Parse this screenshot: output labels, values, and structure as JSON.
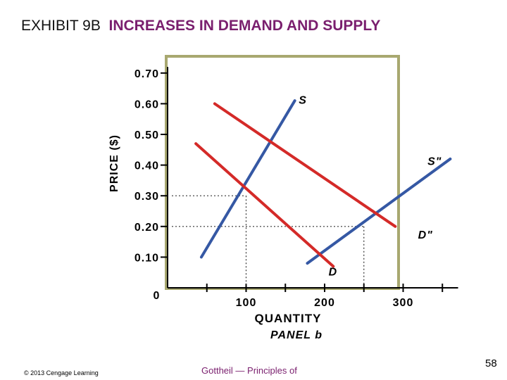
{
  "slide": {
    "title_lead": "EXHIBIT 9B",
    "title_main": "INCREASES IN DEMAND AND SUPPLY",
    "copyright": "© 2013 Cengage Learning",
    "source": "Gottheil — Principles of",
    "page_number": "58"
  },
  "chart_data": {
    "type": "line",
    "ylabel": "PRICE ($)",
    "xlabel": "QUANTITY",
    "panel": "PANEL b",
    "origin_label": "0",
    "x_ticks": [
      {
        "value": 50,
        "label": ""
      },
      {
        "value": 100,
        "label": "100"
      },
      {
        "value": 150,
        "label": ""
      },
      {
        "value": 200,
        "label": "200"
      },
      {
        "value": 250,
        "label": ""
      },
      {
        "value": 300,
        "label": "300"
      },
      {
        "value": 350,
        "label": ""
      }
    ],
    "y_ticks": [
      {
        "value": 0.1,
        "label": "0.10"
      },
      {
        "value": 0.2,
        "label": "0.20"
      },
      {
        "value": 0.3,
        "label": "0.30"
      },
      {
        "value": 0.4,
        "label": "0.40"
      },
      {
        "value": 0.5,
        "label": "0.50"
      },
      {
        "value": 0.6,
        "label": "0.60"
      },
      {
        "value": 0.7,
        "label": "0.70"
      }
    ],
    "xlim": [
      0,
      370
    ],
    "ylim": [
      0,
      0.72
    ],
    "series": [
      {
        "name": "S",
        "color": "#3558a4",
        "points": [
          [
            43,
            0.1
          ],
          [
            162,
            0.61
          ]
        ]
      },
      {
        "name": "S\"",
        "color": "#3558a4",
        "points": [
          [
            178,
            0.08
          ],
          [
            360,
            0.42
          ]
        ]
      },
      {
        "name": "D",
        "color": "#d42a28",
        "points": [
          [
            36,
            0.47
          ],
          [
            211,
            0.07
          ]
        ]
      },
      {
        "name": "D\"",
        "color": "#d42a28",
        "points": [
          [
            60,
            0.6
          ],
          [
            290,
            0.2
          ]
        ]
      }
    ],
    "series_labels": [
      {
        "series": "S",
        "text": "S",
        "at": [
          167,
          0.6
        ]
      },
      {
        "series": "S\"",
        "text": "S\"",
        "at": [
          331,
          0.4
        ]
      },
      {
        "series": "D",
        "text": "D",
        "at": [
          205,
          0.04
        ]
      },
      {
        "series": "D\"",
        "text": "D\"",
        "at": [
          319,
          0.16
        ]
      }
    ],
    "equilibria": [
      {
        "x": 100,
        "y": 0.3
      },
      {
        "x": 250,
        "y": 0.2
      }
    ],
    "frame_color": "#a8a870"
  }
}
